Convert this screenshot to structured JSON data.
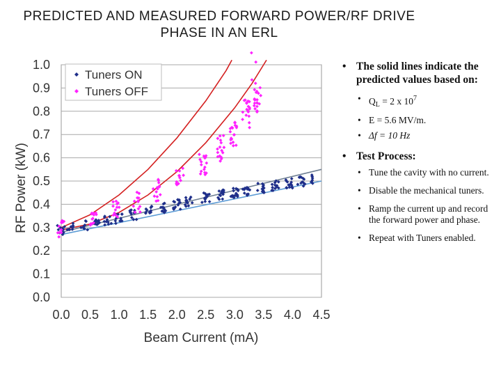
{
  "title": {
    "line1": "PREDICTED AND MEASURED FORWARD POWER/RF DRIVE",
    "line2": "PHASE IN AN ERL"
  },
  "chart_data": {
    "type": "scatter",
    "xlabel": "Beam Current (mA)",
    "ylabel": "RF Power (kW)",
    "xlim": [
      0.0,
      4.5
    ],
    "ylim": [
      0.0,
      1.0
    ],
    "xticks": [
      "0.0",
      "0.5",
      "1.0",
      "1.5",
      "2.0",
      "2.5",
      "3.0",
      "3.5",
      "4.0",
      "4.5"
    ],
    "yticks": [
      "0.0",
      "0.1",
      "0.2",
      "0.3",
      "0.4",
      "0.5",
      "0.6",
      "0.7",
      "0.8",
      "0.9",
      "1.0"
    ],
    "grid": "horizontal",
    "legend_position": "top-left",
    "series": [
      {
        "name": "Tuners ON",
        "color": "#1f2f8a",
        "clusters": [
          {
            "x": 0.0,
            "y": 0.29,
            "n": 12
          },
          {
            "x": 0.15,
            "y": 0.3,
            "n": 8
          },
          {
            "x": 0.4,
            "y": 0.31,
            "n": 8
          },
          {
            "x": 0.6,
            "y": 0.325,
            "n": 10
          },
          {
            "x": 0.8,
            "y": 0.33,
            "n": 10
          },
          {
            "x": 1.0,
            "y": 0.34,
            "n": 12
          },
          {
            "x": 1.25,
            "y": 0.355,
            "n": 12
          },
          {
            "x": 1.5,
            "y": 0.37,
            "n": 12
          },
          {
            "x": 1.75,
            "y": 0.385,
            "n": 12
          },
          {
            "x": 2.0,
            "y": 0.4,
            "n": 14
          },
          {
            "x": 2.2,
            "y": 0.41,
            "n": 12
          },
          {
            "x": 2.5,
            "y": 0.43,
            "n": 14
          },
          {
            "x": 2.75,
            "y": 0.44,
            "n": 14
          },
          {
            "x": 3.0,
            "y": 0.45,
            "n": 14
          },
          {
            "x": 3.2,
            "y": 0.46,
            "n": 12
          },
          {
            "x": 3.45,
            "y": 0.47,
            "n": 14
          },
          {
            "x": 3.7,
            "y": 0.48,
            "n": 12
          },
          {
            "x": 3.95,
            "y": 0.49,
            "n": 14
          },
          {
            "x": 4.15,
            "y": 0.5,
            "n": 12
          },
          {
            "x": 4.3,
            "y": 0.505,
            "n": 8
          }
        ]
      },
      {
        "name": "Tuners OFF",
        "color": "#ff22ff",
        "clusters": [
          {
            "x": 0.0,
            "y": 0.3,
            "n": 12
          },
          {
            "x": 0.55,
            "y": 0.35,
            "n": 12
          },
          {
            "x": 0.95,
            "y": 0.38,
            "n": 12
          },
          {
            "x": 1.3,
            "y": 0.41,
            "n": 12
          },
          {
            "x": 1.65,
            "y": 0.46,
            "n": 14
          },
          {
            "x": 2.05,
            "y": 0.51,
            "n": 14
          },
          {
            "x": 2.45,
            "y": 0.58,
            "n": 16
          },
          {
            "x": 2.75,
            "y": 0.64,
            "n": 16
          },
          {
            "x": 2.98,
            "y": 0.71,
            "n": 18
          },
          {
            "x": 3.2,
            "y": 0.79,
            "n": 18
          },
          {
            "x": 3.4,
            "y": 0.86,
            "n": 20
          },
          {
            "x": 3.35,
            "y": 0.99,
            "n": 3
          }
        ]
      }
    ],
    "predicted_lines": [
      {
        "color": "#d42020",
        "points": [
          [
            0.0,
            0.29
          ],
          [
            0.5,
            0.315
          ],
          [
            1.0,
            0.365
          ],
          [
            1.5,
            0.44
          ],
          [
            2.0,
            0.54
          ],
          [
            2.5,
            0.665
          ],
          [
            3.0,
            0.815
          ],
          [
            3.3,
            0.92
          ],
          [
            3.55,
            1.02
          ]
        ]
      },
      {
        "color": "#d42020",
        "points": [
          [
            0.0,
            0.3
          ],
          [
            0.5,
            0.355
          ],
          [
            1.0,
            0.44
          ],
          [
            1.5,
            0.55
          ],
          [
            2.0,
            0.685
          ],
          [
            2.5,
            0.845
          ],
          [
            2.85,
            0.975
          ],
          [
            2.95,
            1.02
          ]
        ]
      },
      {
        "color": "#6f7f93",
        "points": [
          [
            0.0,
            0.28
          ],
          [
            4.5,
            0.55
          ]
        ]
      },
      {
        "color": "#5b9bd5",
        "points": [
          [
            0.0,
            0.27
          ],
          [
            4.5,
            0.5
          ]
        ]
      }
    ]
  },
  "legend": {
    "items": [
      {
        "label": "Tuners ON",
        "color": "#1f2f8a"
      },
      {
        "label": "Tuners OFF",
        "color": "#ff22ff"
      }
    ]
  },
  "notes": {
    "solid_lines": "The solid lines indicate the predicted values based  on:",
    "q_prefix": "Q",
    "q_sub": "L",
    "q_mid": " = 2 x 10",
    "q_sup": "7",
    "e_field": "E = 5.6 MV/m.",
    "delta_f": "Δf = 10 Hz",
    "test_process": "Test Process:",
    "steps": [
      "Tune the cavity with no current.",
      "Disable the mechanical tuners.",
      "Ramp the current up and record the forward power and phase.",
      "Repeat with Tuners enabled."
    ]
  }
}
